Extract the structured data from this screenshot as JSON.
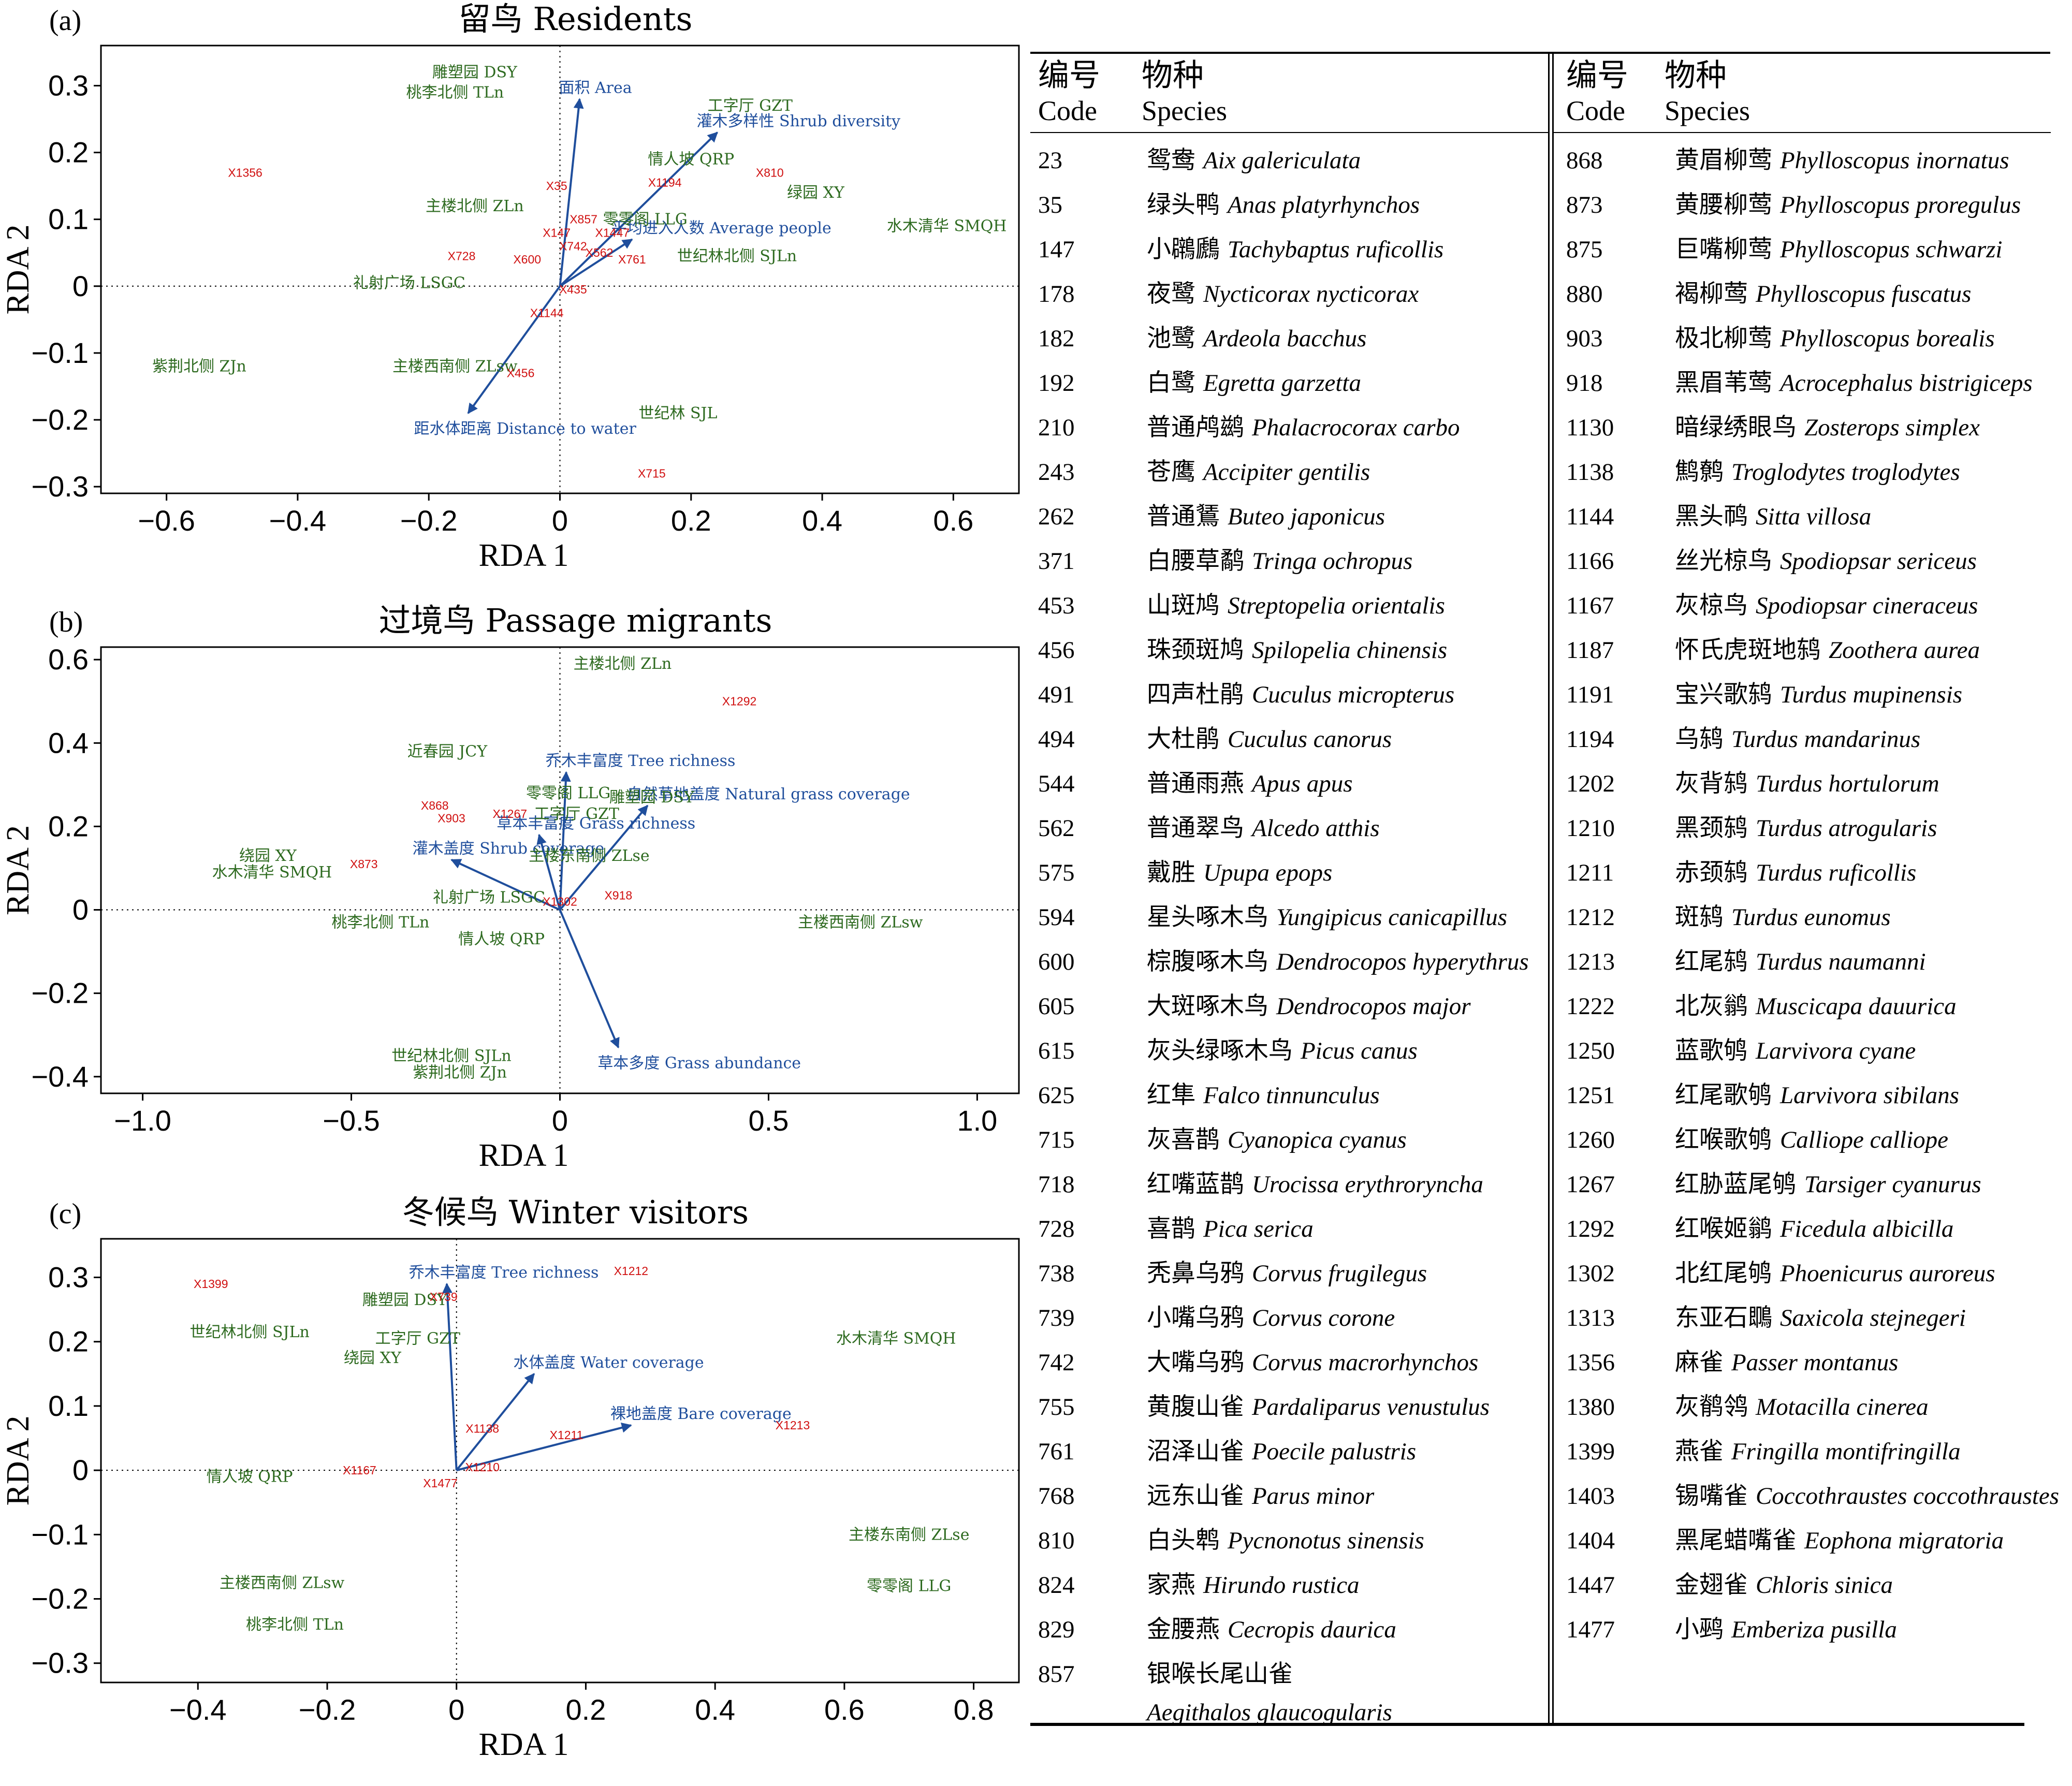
{
  "chart_data": [
    {
      "type": "scatter",
      "panel": "(a)",
      "title": "留鸟 Residents",
      "xlabel": "RDA 1",
      "ylabel": "RDA 2",
      "xlim": [
        -0.7,
        0.7
      ],
      "ylim": [
        -0.31,
        0.36
      ],
      "xticks": [
        "−0.6",
        "−0.4",
        "−0.2",
        "0",
        "0.2",
        "0.4",
        "0.6"
      ],
      "xtick_values": [
        -0.6,
        -0.4,
        -0.2,
        0,
        0.2,
        0.4,
        0.6
      ],
      "yticks": [
        "0.3",
        "0.2",
        "0.1",
        "0",
        "−0.1",
        "−0.2",
        "−0.3"
      ],
      "ytick_values": [
        0.3,
        0.2,
        0.1,
        0,
        -0.1,
        -0.2,
        -0.3
      ],
      "env_arrows": [
        {
          "label": "面积 Area",
          "x": 0.03,
          "y": 0.28
        },
        {
          "label": "灌木多样性 Shrub diversity",
          "x": 0.24,
          "y": 0.23
        },
        {
          "label": "平均进入人数 Average people",
          "x": 0.11,
          "y": 0.07
        },
        {
          "label": "距水体距离 Distance to water",
          "x": -0.14,
          "y": -0.19
        }
      ],
      "sites": [
        {
          "label": "雕塑园 DSY",
          "x": -0.13,
          "y": 0.32
        },
        {
          "label": "桃李北侧 TLn",
          "x": -0.16,
          "y": 0.29
        },
        {
          "label": "工字厅 GZT",
          "x": 0.29,
          "y": 0.27
        },
        {
          "label": "情人坡 QRP",
          "x": 0.2,
          "y": 0.19
        },
        {
          "label": "绿园 XY",
          "x": 0.39,
          "y": 0.14
        },
        {
          "label": "主楼北侧 ZLn",
          "x": -0.13,
          "y": 0.12
        },
        {
          "label": "零零阁 LLG",
          "x": 0.13,
          "y": 0.1
        },
        {
          "label": "水木清华 SMQH",
          "x": 0.59,
          "y": 0.09
        },
        {
          "label": "世纪林北侧 SJLn",
          "x": 0.27,
          "y": 0.045
        },
        {
          "label": "礼射广场 LSGC",
          "x": -0.23,
          "y": 0.005
        },
        {
          "label": "紫荆北侧 ZJn",
          "x": -0.55,
          "y": -0.12
        },
        {
          "label": "主楼西南侧 ZLsw",
          "x": -0.16,
          "y": -0.12
        },
        {
          "label": "世纪林 SJL",
          "x": 0.18,
          "y": -0.19
        }
      ],
      "species": [
        {
          "label": "X1356",
          "x": -0.48,
          "y": 0.17
        },
        {
          "label": "X35",
          "x": -0.005,
          "y": 0.15
        },
        {
          "label": "X810",
          "x": 0.32,
          "y": 0.17
        },
        {
          "label": "X1194",
          "x": 0.16,
          "y": 0.155
        },
        {
          "label": "X857",
          "x": 0.036,
          "y": 0.1
        },
        {
          "label": "X1447",
          "x": 0.08,
          "y": 0.08
        },
        {
          "label": "X147",
          "x": -0.005,
          "y": 0.08
        },
        {
          "label": "X742",
          "x": 0.02,
          "y": 0.06
        },
        {
          "label": "X562",
          "x": 0.06,
          "y": 0.05
        },
        {
          "label": "X761",
          "x": 0.11,
          "y": 0.04
        },
        {
          "label": "X728",
          "x": -0.15,
          "y": 0.045
        },
        {
          "label": "X600",
          "x": -0.05,
          "y": 0.04
        },
        {
          "label": "X435",
          "x": 0.02,
          "y": -0.005
        },
        {
          "label": "X1144",
          "x": -0.02,
          "y": -0.04
        },
        {
          "label": "X456",
          "x": -0.06,
          "y": -0.13
        },
        {
          "label": "X715",
          "x": 0.14,
          "y": -0.28
        }
      ]
    },
    {
      "type": "scatter",
      "panel": "(b)",
      "title": "过境鸟 Passage migrants",
      "xlabel": "RDA 1",
      "ylabel": "RDA 2",
      "xlim": [
        -1.1,
        1.1
      ],
      "ylim": [
        -0.44,
        0.63
      ],
      "xticks": [
        "−1.0",
        "−0.5",
        "0",
        "0.5",
        "1.0"
      ],
      "xtick_values": [
        -1.0,
        -0.5,
        0,
        0.5,
        1.0
      ],
      "yticks": [
        "0.6",
        "0.4",
        "0.2",
        "0",
        "−0.2",
        "−0.4"
      ],
      "ytick_values": [
        0.6,
        0.4,
        0.2,
        0,
        -0.2,
        -0.4
      ],
      "env_arrows": [
        {
          "label": "乔木丰富度 Tree richness",
          "x": 0.015,
          "y": 0.33
        },
        {
          "label": "自然草地盖度 Natural grass coverage",
          "x": 0.21,
          "y": 0.25
        },
        {
          "label": "草本丰富度 Grass richness",
          "x": -0.05,
          "y": 0.18
        },
        {
          "label": "灌木盖度 Shrub coverage",
          "x": -0.26,
          "y": 0.12
        },
        {
          "label": "草本多度 Grass abundance",
          "x": 0.14,
          "y": -0.33
        }
      ],
      "sites": [
        {
          "label": "主楼北侧 ZLn",
          "x": 0.15,
          "y": 0.59
        },
        {
          "label": "近春园 JCY",
          "x": -0.27,
          "y": 0.38
        },
        {
          "label": "零零阁 LLG",
          "x": 0.02,
          "y": 0.28
        },
        {
          "label": "雕塑园 DSY",
          "x": 0.22,
          "y": 0.27
        },
        {
          "label": "工字厅 GZT",
          "x": 0.04,
          "y": 0.23
        },
        {
          "label": "主楼东南侧 ZLse",
          "x": 0.07,
          "y": 0.13
        },
        {
          "label": "绕园 XY",
          "x": -0.7,
          "y": 0.13
        },
        {
          "label": "水木清华 SMQH",
          "x": -0.69,
          "y": 0.09
        },
        {
          "label": "礼射广场 LSGC",
          "x": -0.17,
          "y": 0.03
        },
        {
          "label": "桃李北侧 TLn",
          "x": -0.43,
          "y": -0.03
        },
        {
          "label": "主楼西南侧 ZLsw",
          "x": 0.72,
          "y": -0.03
        },
        {
          "label": "情人坡 QRP",
          "x": -0.14,
          "y": -0.07
        },
        {
          "label": "世纪林北侧 SJLn",
          "x": -0.26,
          "y": -0.35
        },
        {
          "label": "紫荆北侧 ZJn",
          "x": -0.24,
          "y": -0.39
        }
      ],
      "species": [
        {
          "label": "X1292",
          "x": 0.43,
          "y": 0.5
        },
        {
          "label": "X868",
          "x": -0.3,
          "y": 0.25
        },
        {
          "label": "X903",
          "x": -0.26,
          "y": 0.22
        },
        {
          "label": "X1267",
          "x": -0.12,
          "y": 0.23
        },
        {
          "label": "X873",
          "x": -0.47,
          "y": 0.11
        },
        {
          "label": "X918",
          "x": 0.14,
          "y": 0.035
        },
        {
          "label": "X1302",
          "x": 0.0,
          "y": 0.02
        }
      ]
    },
    {
      "type": "scatter",
      "panel": "(c)",
      "title": "冬候鸟 Winter visitors",
      "xlabel": "RDA 1",
      "ylabel": "RDA 2",
      "xlim": [
        -0.55,
        0.87
      ],
      "ylim": [
        -0.33,
        0.36
      ],
      "xticks": [
        "−0.4",
        "−0.2",
        "0",
        "0.2",
        "0.4",
        "0.6",
        "0.8"
      ],
      "xtick_values": [
        -0.4,
        -0.2,
        0,
        0.2,
        0.4,
        0.6,
        0.8
      ],
      "yticks": [
        "0.3",
        "0.2",
        "0.1",
        "0",
        "−0.1",
        "−0.2",
        "−0.3"
      ],
      "ytick_values": [
        0.3,
        0.2,
        0.1,
        0,
        -0.1,
        -0.2,
        -0.3
      ],
      "env_arrows": [
        {
          "label": "乔木丰富度 Tree richness",
          "x": -0.015,
          "y": 0.29
        },
        {
          "label": "水体盖度 Water coverage",
          "x": 0.12,
          "y": 0.15
        },
        {
          "label": "裸地盖度 Bare coverage",
          "x": 0.27,
          "y": 0.07
        }
      ],
      "sites": [
        {
          "label": "雕塑园 DSY",
          "x": -0.08,
          "y": 0.265
        },
        {
          "label": "世纪林北侧 SJLn",
          "x": -0.32,
          "y": 0.215
        },
        {
          "label": "工字厅 GZT",
          "x": -0.06,
          "y": 0.205
        },
        {
          "label": "绕园 XY",
          "x": -0.13,
          "y": 0.175
        },
        {
          "label": "水木清华 SMQH",
          "x": 0.68,
          "y": 0.205
        },
        {
          "label": "情人坡 QRP",
          "x": -0.32,
          "y": -0.01
        },
        {
          "label": "主楼东南侧 ZLse",
          "x": 0.7,
          "y": -0.1
        },
        {
          "label": "主楼西南侧 ZLsw",
          "x": -0.27,
          "y": -0.175
        },
        {
          "label": "零零阁 LLG",
          "x": 0.7,
          "y": -0.18
        },
        {
          "label": "桃李北侧 TLn",
          "x": -0.25,
          "y": -0.24
        }
      ],
      "species": [
        {
          "label": "X1399",
          "x": -0.38,
          "y": 0.29
        },
        {
          "label": "X1212",
          "x": 0.27,
          "y": 0.31
        },
        {
          "label": "X739",
          "x": -0.02,
          "y": 0.27
        },
        {
          "label": "X1138",
          "x": 0.04,
          "y": 0.065
        },
        {
          "label": "X1211",
          "x": 0.17,
          "y": 0.055
        },
        {
          "label": "X1213",
          "x": 0.52,
          "y": 0.07
        },
        {
          "label": "X1167",
          "x": -0.15,
          "y": 0.0
        },
        {
          "label": "X1210",
          "x": 0.04,
          "y": 0.005
        },
        {
          "label": "X1477",
          "x": -0.025,
          "y": -0.02
        }
      ]
    }
  ],
  "legend_table": {
    "headers": {
      "code_cn": "编号",
      "code_en": "Code",
      "species_cn": "物种",
      "species_en": "Species"
    },
    "left": [
      {
        "code": "23",
        "cn": "鸳鸯",
        "sci": "Aix galericulata"
      },
      {
        "code": "35",
        "cn": "绿头鸭",
        "sci": "Anas platyrhynchos"
      },
      {
        "code": "147",
        "cn": "小鸊鷉",
        "sci": "Tachybaptus ruficollis"
      },
      {
        "code": "178",
        "cn": "夜鹭",
        "sci": "Nycticorax nycticorax"
      },
      {
        "code": "182",
        "cn": "池鹭",
        "sci": "Ardeola bacchus"
      },
      {
        "code": "192",
        "cn": "白鹭",
        "sci": "Egretta garzetta"
      },
      {
        "code": "210",
        "cn": "普通鸬鹚",
        "sci": "Phalacrocorax carbo"
      },
      {
        "code": "243",
        "cn": "苍鹰",
        "sci": "Accipiter gentilis"
      },
      {
        "code": "262",
        "cn": "普通鵟",
        "sci": "Buteo japonicus"
      },
      {
        "code": "371",
        "cn": "白腰草鹬",
        "sci": "Tringa ochropus"
      },
      {
        "code": "453",
        "cn": "山斑鸠",
        "sci": "Streptopelia orientalis"
      },
      {
        "code": "456",
        "cn": "珠颈斑鸠",
        "sci": "Spilopelia chinensis"
      },
      {
        "code": "491",
        "cn": "四声杜鹃",
        "sci": "Cuculus micropterus"
      },
      {
        "code": "494",
        "cn": "大杜鹃",
        "sci": "Cuculus canorus"
      },
      {
        "code": "544",
        "cn": "普通雨燕",
        "sci": "Apus apus"
      },
      {
        "code": "562",
        "cn": "普通翠鸟",
        "sci": "Alcedo atthis"
      },
      {
        "code": "575",
        "cn": "戴胜",
        "sci": "Upupa epops"
      },
      {
        "code": "594",
        "cn": "星头啄木鸟",
        "sci": "Yungipicus canicapillus"
      },
      {
        "code": "600",
        "cn": "棕腹啄木鸟",
        "sci": "Dendrocopos hyperythrus"
      },
      {
        "code": "605",
        "cn": "大斑啄木鸟",
        "sci": "Dendrocopos major"
      },
      {
        "code": "615",
        "cn": "灰头绿啄木鸟",
        "sci": "Picus canus"
      },
      {
        "code": "625",
        "cn": "红隼",
        "sci": "Falco tinnunculus"
      },
      {
        "code": "715",
        "cn": "灰喜鹊",
        "sci": "Cyanopica cyanus"
      },
      {
        "code": "718",
        "cn": "红嘴蓝鹊",
        "sci": "Urocissa erythroryncha"
      },
      {
        "code": "728",
        "cn": "喜鹊",
        "sci": "Pica serica"
      },
      {
        "code": "738",
        "cn": "秃鼻乌鸦",
        "sci": "Corvus frugilegus"
      },
      {
        "code": "739",
        "cn": "小嘴乌鸦",
        "sci": "Corvus corone"
      },
      {
        "code": "742",
        "cn": "大嘴乌鸦",
        "sci": "Corvus macrorhynchos"
      },
      {
        "code": "755",
        "cn": "黄腹山雀",
        "sci": "Pardaliparus venustulus"
      },
      {
        "code": "761",
        "cn": "沼泽山雀",
        "sci": "Poecile palustris"
      },
      {
        "code": "768",
        "cn": "远东山雀",
        "sci": "Parus minor"
      },
      {
        "code": "810",
        "cn": "白头鹎",
        "sci": "Pycnonotus sinensis"
      },
      {
        "code": "824",
        "cn": "家燕",
        "sci": "Hirundo rustica"
      },
      {
        "code": "829",
        "cn": "金腰燕",
        "sci": "Cecropis daurica"
      },
      {
        "code": "857",
        "cn": "银喉长尾山雀",
        "sci": ""
      },
      {
        "code": "",
        "cn": "",
        "sci": "Aegithalos glaucogularis"
      }
    ],
    "right": [
      {
        "code": "868",
        "cn": "黄眉柳莺",
        "sci": "Phylloscopus inornatus"
      },
      {
        "code": "873",
        "cn": "黄腰柳莺",
        "sci": "Phylloscopus proregulus"
      },
      {
        "code": "875",
        "cn": "巨嘴柳莺",
        "sci": "Phylloscopus schwarzi"
      },
      {
        "code": "880",
        "cn": "褐柳莺",
        "sci": "Phylloscopus fuscatus"
      },
      {
        "code": "903",
        "cn": "极北柳莺",
        "sci": "Phylloscopus borealis"
      },
      {
        "code": "918",
        "cn": "黑眉苇莺",
        "sci": "Acrocephalus bistrigiceps"
      },
      {
        "code": "1130",
        "cn": "暗绿绣眼鸟",
        "sci": "Zosterops simplex"
      },
      {
        "code": "1138",
        "cn": "鹪鹩",
        "sci": "Troglodytes troglodytes"
      },
      {
        "code": "1144",
        "cn": "黑头䴓",
        "sci": "Sitta villosa"
      },
      {
        "code": "1166",
        "cn": "丝光椋鸟",
        "sci": "Spodiopsar sericeus"
      },
      {
        "code": "1167",
        "cn": "灰椋鸟",
        "sci": "Spodiopsar cineraceus"
      },
      {
        "code": "1187",
        "cn": "怀氏虎斑地鸫",
        "sci": "Zoothera aurea"
      },
      {
        "code": "1191",
        "cn": "宝兴歌鸫",
        "sci": "Turdus mupinensis"
      },
      {
        "code": "1194",
        "cn": "乌鸫",
        "sci": "Turdus mandarinus"
      },
      {
        "code": "1202",
        "cn": "灰背鸫",
        "sci": "Turdus hortulorum"
      },
      {
        "code": "1210",
        "cn": "黑颈鸫",
        "sci": "Turdus atrogularis"
      },
      {
        "code": "1211",
        "cn": "赤颈鸫",
        "sci": "Turdus ruficollis"
      },
      {
        "code": "1212",
        "cn": "斑鸫",
        "sci": "Turdus eunomus"
      },
      {
        "code": "1213",
        "cn": "红尾鸫",
        "sci": "Turdus naumanni"
      },
      {
        "code": "1222",
        "cn": "北灰鹟",
        "sci": "Muscicapa dauurica"
      },
      {
        "code": "1250",
        "cn": "蓝歌鸲",
        "sci": "Larvivora cyane"
      },
      {
        "code": "1251",
        "cn": "红尾歌鸲",
        "sci": "Larvivora sibilans"
      },
      {
        "code": "1260",
        "cn": "红喉歌鸲",
        "sci": "Calliope calliope"
      },
      {
        "code": "1267",
        "cn": "红胁蓝尾鸲",
        "sci": "Tarsiger cyanurus"
      },
      {
        "code": "1292",
        "cn": "红喉姬鹟",
        "sci": "Ficedula albicilla"
      },
      {
        "code": "1302",
        "cn": "北红尾鸲",
        "sci": "Phoenicurus auroreus"
      },
      {
        "code": "1313",
        "cn": "东亚石䳭",
        "sci": "Saxicola stejnegeri"
      },
      {
        "code": "1356",
        "cn": "麻雀",
        "sci": "Passer montanus"
      },
      {
        "code": "1380",
        "cn": "灰鹡鸰",
        "sci": "Motacilla cinerea"
      },
      {
        "code": "1399",
        "cn": "燕雀",
        "sci": "Fringilla montifringilla"
      },
      {
        "code": "1403",
        "cn": "锡嘴雀",
        "sci": "Coccothraustes coccothraustes"
      },
      {
        "code": "1404",
        "cn": "黑尾蜡嘴雀",
        "sci": "Eophona migratoria"
      },
      {
        "code": "1447",
        "cn": "金翅雀",
        "sci": "Chloris sinica"
      },
      {
        "code": "1477",
        "cn": "小鹀",
        "sci": "Emberiza pusilla"
      }
    ]
  },
  "colors": {
    "site": "#2d6a1f",
    "env": "#1f4e9c",
    "species": "#d01010",
    "axes": "#000000"
  }
}
